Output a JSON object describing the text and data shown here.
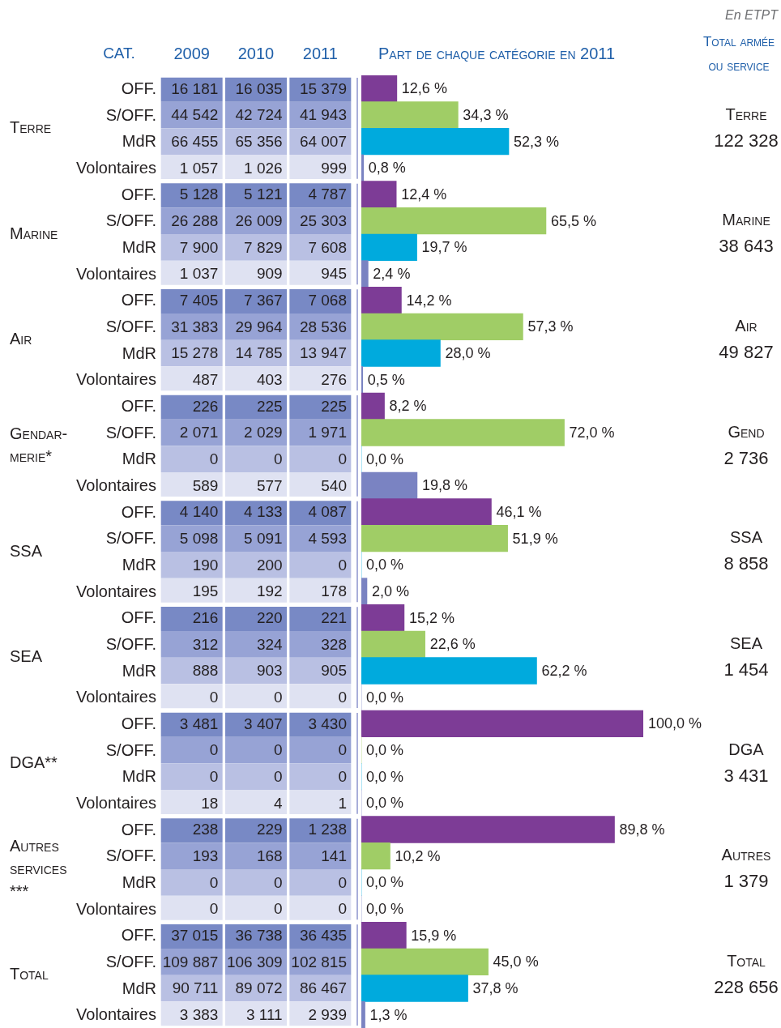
{
  "chart_data": [
    {
      "type": "heatmap",
      "ylabel": "CAT.",
      "categories": [
        "2009",
        "2010",
        "2011"
      ],
      "y_categories": [
        "OFF.",
        "S/OFF.",
        "MdR",
        "Volontaires",
        "OFF.",
        "S/OFF.",
        "MdR",
        "Volontaires",
        "OFF.",
        "S/OFF.",
        "MdR",
        "Volontaires",
        "OFF.",
        "S/OFF.",
        "MdR",
        "Volontaires",
        "OFF.",
        "S/OFF.",
        "MdR",
        "Volontaires",
        "OFF.",
        "S/OFF.",
        "MdR",
        "Volontaires",
        "OFF.",
        "S/OFF.",
        "MdR",
        "Volontaires",
        "OFF.",
        "S/OFF.",
        "MdR",
        "Volontaires",
        "OFF.",
        "S/OFF.",
        "MdR",
        "Volontaires"
      ],
      "cells": [
        [
          16181,
          16035,
          15379
        ],
        [
          44542,
          42724,
          41943
        ],
        [
          66455,
          65356,
          64007
        ],
        [
          1057,
          1026,
          999
        ],
        [
          5128,
          5121,
          4787
        ],
        [
          26288,
          26009,
          25303
        ],
        [
          7900,
          7829,
          7608
        ],
        [
          1037,
          909,
          945
        ],
        [
          7405,
          7367,
          7068
        ],
        [
          31383,
          29964,
          28536
        ],
        [
          15278,
          14785,
          13947
        ],
        [
          487,
          403,
          276
        ],
        [
          226,
          225,
          225
        ],
        [
          2071,
          2029,
          1971
        ],
        [
          0,
          0,
          0
        ],
        [
          589,
          577,
          540
        ],
        [
          4140,
          4133,
          4087
        ],
        [
          5098,
          5091,
          4593
        ],
        [
          190,
          200,
          0
        ],
        [
          195,
          192,
          178
        ],
        [
          216,
          220,
          221
        ],
        [
          312,
          324,
          328
        ],
        [
          888,
          903,
          905
        ],
        [
          0,
          0,
          0
        ],
        [
          3481,
          3407,
          3430
        ],
        [
          0,
          0,
          0
        ],
        [
          0,
          0,
          0
        ],
        [
          18,
          4,
          1
        ],
        [
          238,
          229,
          1238
        ],
        [
          193,
          168,
          141
        ],
        [
          0,
          0,
          0
        ],
        [
          0,
          0,
          0
        ],
        [
          37015,
          36738,
          36435
        ],
        [
          109887,
          106309,
          102815
        ],
        [
          90711,
          89072,
          86467
        ],
        [
          3383,
          3111,
          2939
        ]
      ],
      "data_labels": true,
      "annotations": [
        "Terre",
        "Marine",
        "Air",
        "Gendar-merie*",
        "SSA",
        "SEA",
        "DGA**",
        "Autres services ***",
        "Total"
      ]
    },
    {
      "type": "bar",
      "orientation": "horizontal",
      "title": "Part de chaque catégorie en 2011",
      "categories": [
        null,
        null,
        null,
        null,
        null,
        null,
        null,
        null,
        null,
        null,
        null,
        null,
        null,
        null,
        null,
        null,
        null,
        null,
        null,
        null,
        null,
        null,
        null,
        null,
        null,
        null,
        null,
        null,
        null,
        null,
        null,
        null,
        null,
        null,
        null,
        null
      ],
      "values": [
        12.6,
        34.3,
        52.3,
        0.8,
        12.4,
        65.5,
        19.7,
        2.4,
        14.2,
        57.3,
        28.0,
        0.5,
        8.2,
        72.0,
        0.0,
        19.8,
        46.1,
        51.9,
        0.0,
        2.0,
        15.2,
        22.6,
        62.2,
        0.0,
        100.0,
        0.0,
        0.0,
        0.0,
        89.8,
        10.2,
        0.0,
        0.0,
        15.9,
        45.0,
        37.8,
        1.3
      ],
      "colors": [
        "#7d3c96",
        "#a0cd66",
        "#00aadd",
        "#7a83c2",
        "#7d3c96",
        "#a0cd66",
        "#00aadd",
        "#7a83c2",
        "#7d3c96",
        "#a0cd66",
        "#00aadd",
        "#7a83c2",
        "#7d3c96",
        "#a0cd66",
        "#00aadd",
        "#7a83c2",
        "#7d3c96",
        "#a0cd66",
        "#00aadd",
        "#7a83c2",
        "#7d3c96",
        "#a0cd66",
        "#00aadd",
        "#7a83c2",
        "#7d3c96",
        "#a0cd66",
        "#00aadd",
        "#7a83c2",
        "#7d3c96",
        "#a0cd66",
        "#00aadd",
        "#7a83c2",
        "#7d3c96",
        "#a0cd66",
        "#00aadd",
        "#7a83c2"
      ],
      "value_labels": [
        "12,6 %",
        "34,3 %",
        "52,3 %",
        "0,8 %",
        "12,4 %",
        "65,5 %",
        "19,7 %",
        "2,4 %",
        "14,2 %",
        "57,3 %",
        "28,0 %",
        "0,5 %",
        "8,2 %",
        "72,0 %",
        "0,0 %",
        "19,8 %",
        "46,1 %",
        "51,9 %",
        "0,0 %",
        "2,0 %",
        "15,2 %",
        "22,6 %",
        "62,2 %",
        "0,0 %",
        "100,0 %",
        "0,0 %",
        "0,0 %",
        "0,0 %",
        "89,8 %",
        "10,2 %",
        "0,0 %",
        "0,0 %",
        "15,9 %",
        "45,0 %",
        "37,8 %",
        "1,3 %"
      ],
      "tick_labels": false,
      "annotations": [
        "En ETPT",
        "Total armée ou service",
        "Terre",
        "122 328",
        "Marine",
        "38 643",
        "Air",
        "49 827",
        "Gend",
        "2 736",
        "SSA",
        "8 858",
        "SEA",
        "1 454",
        "DGA",
        "3 431",
        "Autres",
        "1 379",
        "Total",
        "228 656"
      ]
    }
  ]
}
